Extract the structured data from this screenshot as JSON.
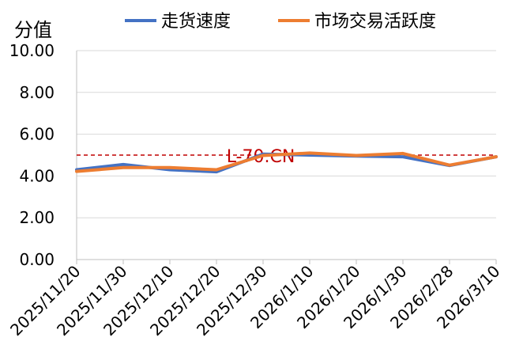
{
  "chart_data": {
    "type": "line",
    "ylabel": "分值",
    "ylim": [
      0,
      10
    ],
    "yticks": [
      "0.00",
      "2.00",
      "4.00",
      "6.00",
      "8.00",
      "10.00"
    ],
    "categories": [
      "2025/11/20",
      "2025/11/30",
      "2025/12/10",
      "2025/12/20",
      "2025/12/30",
      "2026/1/10",
      "2026/1/20",
      "2026/1/30",
      "2026/2/28",
      "2026/3/10"
    ],
    "series": [
      {
        "name": "走货速度",
        "color": "#4472C4",
        "values": [
          4.3,
          4.55,
          4.3,
          4.2,
          5.05,
          5.0,
          4.95,
          4.92,
          4.5,
          4.92
        ]
      },
      {
        "name": "市场交易活跃度",
        "color": "#ED7D31",
        "values": [
          4.22,
          4.4,
          4.4,
          4.3,
          4.98,
          5.1,
          4.98,
          5.08,
          4.52,
          4.92
        ]
      }
    ],
    "reference_line": {
      "value": 5.0,
      "label": "L-70.CN",
      "color": "#C00000",
      "style": "dashed"
    },
    "grid": true,
    "legend_position": "top"
  }
}
